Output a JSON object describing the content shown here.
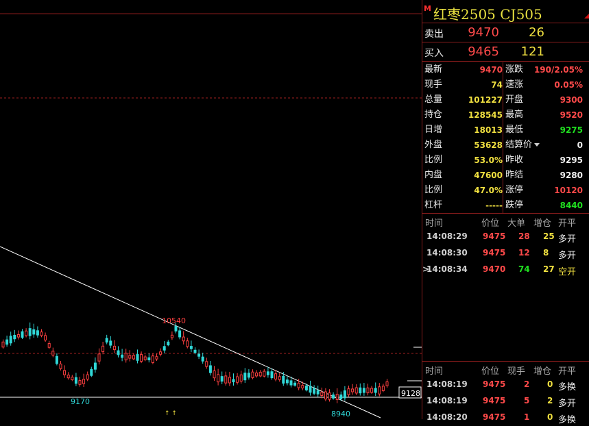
{
  "header": {
    "badge": "M",
    "title": "红枣2505 CJ505"
  },
  "quotes": [
    {
      "label": "卖出",
      "price": "9470",
      "volume": "26"
    },
    {
      "label": "买入",
      "price": "9465",
      "volume": "121"
    }
  ],
  "stats_left": [
    {
      "label": "最新",
      "value": "9470",
      "color": "#ff4a4a"
    },
    {
      "label": "现手",
      "value": "74",
      "color": "#f0e040"
    },
    {
      "label": "总量",
      "value": "101227",
      "color": "#f0e040"
    },
    {
      "label": "持仓",
      "value": "128545",
      "color": "#f0e040"
    },
    {
      "label": "日增",
      "value": "18013",
      "color": "#f0e040"
    },
    {
      "label": "外盘",
      "value": "53628",
      "color": "#f0e040"
    },
    {
      "label": "比例",
      "value": "53.0%",
      "color": "#f0e040"
    },
    {
      "label": "内盘",
      "value": "47600",
      "color": "#f0e040"
    },
    {
      "label": "比例",
      "value": "47.0%",
      "color": "#f0e040"
    },
    {
      "label": "杠杆",
      "value": "-----",
      "color": "#f0e040"
    }
  ],
  "stats_right": [
    {
      "label": "涨跌",
      "value": "190/2.05%",
      "color": "#ff4a4a"
    },
    {
      "label": "速涨",
      "value": "0.05%",
      "color": "#ff4a4a"
    },
    {
      "label": "开盘",
      "value": "9300",
      "color": "#ff4a4a"
    },
    {
      "label": "最高",
      "value": "9520",
      "color": "#ff4a4a"
    },
    {
      "label": "最低",
      "value": "9275",
      "color": "#20e020"
    },
    {
      "label": "结算价",
      "value": "0",
      "color": "#f0f0f0"
    },
    {
      "label": "昨收",
      "value": "9295",
      "color": "#f0f0f0"
    },
    {
      "label": "昨结",
      "value": "9280",
      "color": "#f0f0f0"
    },
    {
      "label": "涨停",
      "value": "10120",
      "color": "#ff4a4a"
    },
    {
      "label": "跌停",
      "value": "8440",
      "color": "#20e020"
    }
  ],
  "tick_table_1": {
    "headers": [
      "时间",
      "价位",
      "大单",
      "增仓",
      "开平"
    ],
    "rows": [
      {
        "time": "14:08:29",
        "price": "9475",
        "big": "28",
        "inc": "25",
        "type": "多开",
        "type_color": "#f0f0f0",
        "big_color": "#ff4a4a"
      },
      {
        "time": "14:08:30",
        "price": "9475",
        "big": "12",
        "inc": "8",
        "type": "多开",
        "type_color": "#f0f0f0",
        "big_color": "#ff4a4a"
      },
      {
        "time": "14:08:34",
        "price": "9470",
        "big": "74",
        "inc": "27",
        "type": "空开",
        "type_color": "#f0e040",
        "big_color": "#20e020",
        "marker": ">"
      }
    ]
  },
  "tick_table_2": {
    "headers": [
      "时间",
      "价位",
      "现手",
      "增仓",
      "开平"
    ],
    "rows": [
      {
        "time": "14:08:19",
        "price": "9475",
        "vol": "2",
        "inc": "0",
        "type": "多换"
      },
      {
        "time": "14:08:19",
        "price": "9475",
        "vol": "5",
        "inc": "2",
        "type": "多开"
      },
      {
        "time": "14:08:20",
        "price": "9475",
        "vol": "1",
        "inc": "0",
        "type": "多换"
      }
    ]
  },
  "chart_labels": {
    "high": "10540",
    "low_left": "9170",
    "low_right": "8940",
    "price_tag": "9128"
  },
  "colors": {
    "up": "#ff4040",
    "down": "#30d8d8",
    "border": "#8a1c1c",
    "trendline": "#ffffff"
  }
}
